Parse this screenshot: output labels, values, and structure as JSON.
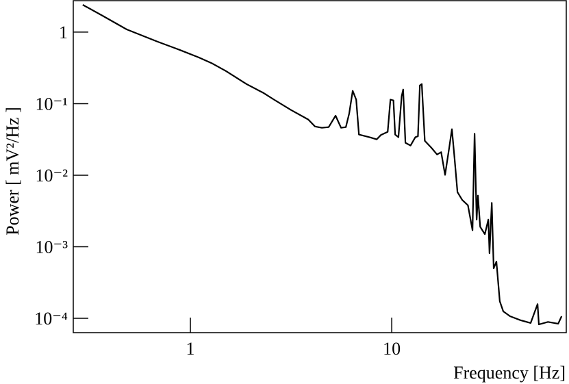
{
  "chart_data": {
    "type": "line",
    "xlabel": "Frequency [Hz]",
    "ylabel": "Power [ mV²/Hz ]",
    "xscale": "log",
    "yscale": "log",
    "xlim": [
      0.262,
      73.6
    ],
    "ylim": [
      6.3e-05,
      2.75
    ],
    "xticks": [
      1,
      10
    ],
    "yticks": [
      1,
      {
        "value": 0.1,
        "label": "10⁻¹"
      },
      {
        "value": 0.01,
        "label": "10⁻²"
      },
      {
        "value": 0.001,
        "label": "10⁻³"
      },
      {
        "value": 0.0001,
        "label": "10⁻⁴"
      }
    ],
    "color": "#000000",
    "x": [
      0.292,
      0.367,
      0.483,
      0.687,
      0.883,
      1.1,
      1.285,
      1.5,
      1.9,
      2.31,
      2.6,
      3.16,
      3.85,
      4.16,
      4.5,
      4.86,
      5.26,
      5.6,
      5.92,
      6.15,
      6.4,
      6.66,
      6.87,
      7.78,
      8.42,
      8.83,
      9.55,
      9.85,
      10.2,
      10.4,
      10.8,
      11.2,
      11.4,
      11.7,
      12.4,
      13.1,
      13.5,
      13.8,
      14.1,
      14.6,
      15.7,
      16.8,
      17.6,
      18.4,
      19.3,
      19.9,
      20.5,
      21.2,
      22.4,
      23.9,
      25.2,
      25.8,
      26.4,
      26.8,
      27.5,
      29.0,
      30.2,
      30.6,
      31.4,
      32.1,
      33.1,
      34.4,
      35.8,
      38.7,
      43.6,
      49.0,
      53.0,
      53.8,
      59.7,
      67.1,
      69.8
    ],
    "values": [
      2.41,
      1.69,
      1.09,
      0.735,
      0.565,
      0.443,
      0.364,
      0.286,
      0.188,
      0.141,
      0.114,
      0.0816,
      0.06,
      0.048,
      0.046,
      0.047,
      0.068,
      0.046,
      0.047,
      0.073,
      0.151,
      0.114,
      0.037,
      0.0339,
      0.0317,
      0.0364,
      0.0404,
      0.114,
      0.111,
      0.037,
      0.034,
      0.127,
      0.158,
      0.0284,
      0.026,
      0.034,
      0.035,
      0.18,
      0.188,
      0.0303,
      0.0244,
      0.0195,
      0.021,
      0.0101,
      0.0244,
      0.044,
      0.0175,
      0.0058,
      0.0045,
      0.0038,
      0.0017,
      0.038,
      0.0024,
      0.0052,
      0.0019,
      0.0015,
      0.0024,
      0.00081,
      0.0041,
      0.0005,
      0.00062,
      0.000173,
      0.000125,
      0.000107,
      9.4e-05,
      8.6e-05,
      0.000158,
      8.2e-05,
      8.9e-05,
      8.4e-05,
      0.000107
    ]
  }
}
